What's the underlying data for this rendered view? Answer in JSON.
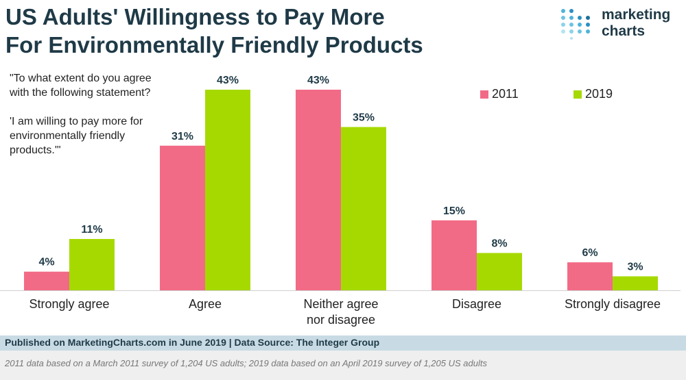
{
  "header": {
    "title_line1": "US Adults' Willingness to Pay More",
    "title_line2": "For Environmentally Friendly Products"
  },
  "logo": {
    "line1": "marketing",
    "line2": "charts"
  },
  "question": {
    "line1": "\"To what extent do you agree with the following statement?",
    "line2": "'I am willing to pay more for environmentally friendly products.'\""
  },
  "footer": {
    "published": "Published on MarketingCharts.com in June 2019 | Data Source: The Integer Group",
    "note": "2011 data based on a March 2011 survey of 1,204 US adults; 2019 data based on an April 2019 survey of 1,205 US adults"
  },
  "colors": {
    "series_2011": "#f26b86",
    "series_2019": "#a6d900",
    "title": "#1f3a47"
  },
  "chart_data": {
    "type": "bar",
    "title": "US Adults' Willingness to Pay More For Environmentally Friendly Products",
    "categories": [
      "Strongly agree",
      "Agree",
      "Neither agree nor disagree",
      "Disagree",
      "Strongly disagree"
    ],
    "category_lines": [
      [
        "Strongly agree"
      ],
      [
        "Agree"
      ],
      [
        "Neither agree",
        "nor disagree"
      ],
      [
        "Disagree"
      ],
      [
        "Strongly disagree"
      ]
    ],
    "series": [
      {
        "name": "2011",
        "values": [
          4,
          31,
          43,
          15,
          6
        ]
      },
      {
        "name": "2019",
        "values": [
          11,
          43,
          35,
          8,
          3
        ]
      }
    ],
    "unit": "%",
    "ylim": [
      0,
      43
    ],
    "grid": false,
    "legend": "top-right"
  }
}
